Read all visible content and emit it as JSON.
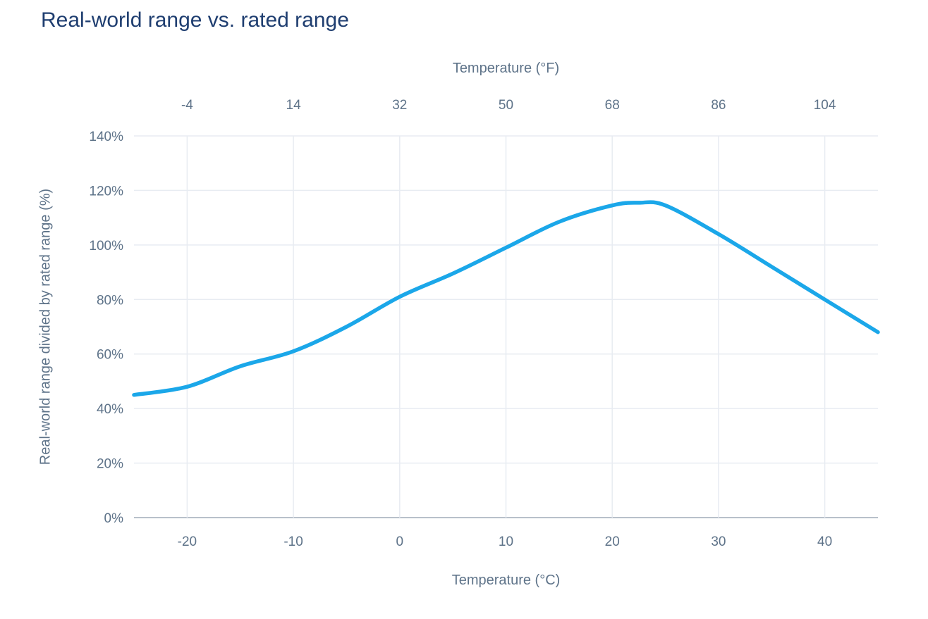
{
  "title": "Real-world range vs. rated range",
  "colors": {
    "background": "#ffffff",
    "title_color": "#1f3e70",
    "axis_text": "#5e7389",
    "grid": "#e8ecf2",
    "baseline": "#b8c0ca",
    "line": "#1ba7e9"
  },
  "chart_data": {
    "type": "line",
    "title": "Real-world range vs. rated range",
    "x_top_axis": {
      "label": "Temperature (°F)",
      "ticks": [
        -4,
        14,
        32,
        50,
        68,
        86,
        104
      ]
    },
    "x_bottom_axis": {
      "label": "Temperature (°C)",
      "ticks": [
        -20,
        -10,
        0,
        10,
        20,
        30,
        40
      ]
    },
    "y_axis": {
      "label": "Real-world range divided by rated range (%)",
      "tick_labels": [
        "0%",
        "20%",
        "40%",
        "60%",
        "80%",
        "100%",
        "120%",
        "140%"
      ],
      "tick_values": [
        0,
        20,
        40,
        60,
        80,
        100,
        120,
        140
      ],
      "ylim": [
        0,
        140
      ]
    },
    "xlim_celsius": [
      -25,
      45
    ],
    "grid": "both",
    "legend": "none",
    "series": [
      {
        "name": "Real-world range divided by rated range (%)",
        "x_celsius": [
          -25,
          -20,
          -15,
          -10,
          -5,
          0,
          5,
          10,
          15,
          20,
          22.5,
          25,
          30,
          35,
          40,
          45
        ],
        "y_percent": [
          45,
          48,
          55.5,
          61,
          70,
          81,
          89.5,
          99,
          108.5,
          114.5,
          115.5,
          114.5,
          104,
          92,
          80,
          68
        ]
      }
    ],
    "peak": {
      "x_celsius": 22.5,
      "y_percent": 115.5
    }
  }
}
